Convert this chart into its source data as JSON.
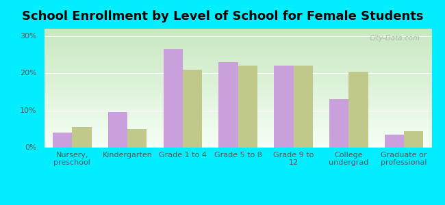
{
  "title": "School Enrollment by Level of School for Female Students",
  "categories": [
    "Nursery,\npreschool",
    "Kindergarten",
    "Grade 1 to 4",
    "Grade 5 to 8",
    "Grade 9 to\n12",
    "College\nundergrad",
    "Graduate or\nprofessional"
  ],
  "martell": [
    4,
    9.5,
    26.5,
    23,
    22,
    13,
    3.5
  ],
  "wisconsin": [
    5.5,
    5,
    21,
    22,
    22,
    20.5,
    4.5
  ],
  "martell_color": "#c9a0dc",
  "wisconsin_color": "#c0c88a",
  "background_outer": "#00eeff",
  "background_inner_top": "#f5fff5",
  "background_inner_bottom": "#c8e8c0",
  "ylabel_ticks": [
    "0%",
    "10%",
    "20%",
    "30%"
  ],
  "ytick_vals": [
    0,
    10,
    20,
    30
  ],
  "ylim": [
    0,
    32
  ],
  "bar_width": 0.35,
  "title_fontsize": 13,
  "tick_fontsize": 8,
  "legend_fontsize": 9,
  "watermark": "City-Data.com"
}
